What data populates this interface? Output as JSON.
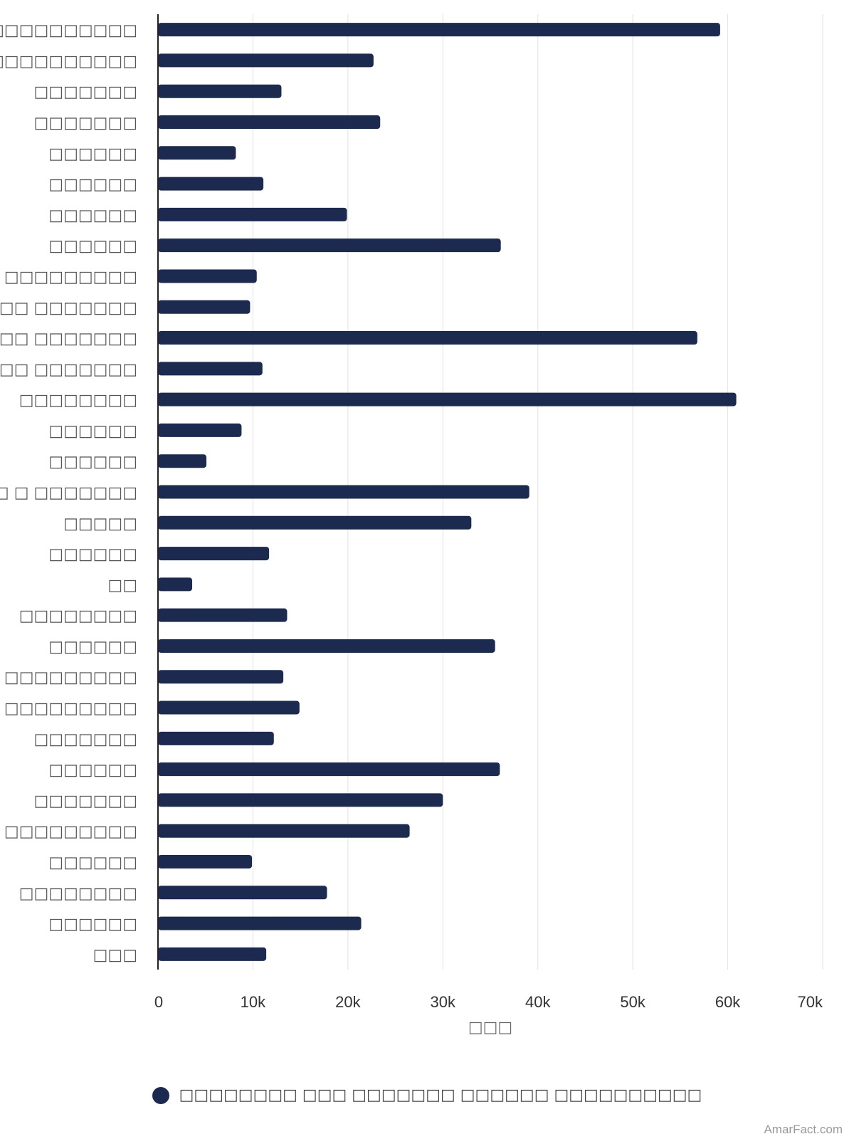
{
  "colors": {
    "bar": "#1b2a4e",
    "grid": "#e2e2e2",
    "axis": "#222222"
  },
  "chart_data": {
    "type": "bar",
    "orientation": "horizontal",
    "categories": [
      "□ □□□□□□□□□□",
      "□ □□□□□□□□□□",
      "□□□□□□□",
      "□□□□□□□",
      "□□□□□□",
      "□□□□□□",
      "□□□□□□",
      "□□□□□□",
      "□ □ □□□□□□□□□",
      "□□□□□ □□□□□□□",
      "□□□□□ □□□□□□□",
      "□□□□□ □□□□□□□",
      "□□□□□□□□",
      "□□□□□□",
      "□□□□□□",
      "□□□□ □ □□□□□□□",
      "□□□□□",
      "□□□□□□",
      "□□",
      "□□□□□□□□",
      "□□□□□□",
      "□□□□□□□□□",
      "□ □ □□□□□□□□□",
      "□□□□□□□",
      "□□□□□□",
      "□□□□□□□",
      "□□□□□□□□□",
      "□□□□□□",
      "□□□□□□□□",
      "□□□□□□",
      "□□□"
    ],
    "series": [
      {
        "name": "□□□□□□□□ □□□ □□□□□□□ □□□□□□ □□□□□□□□□□",
        "values": [
          59200,
          22700,
          13000,
          23400,
          8200,
          11100,
          19900,
          36100,
          10400,
          9700,
          56800,
          11000,
          60900,
          8800,
          5100,
          39100,
          33000,
          11700,
          3600,
          13600,
          35500,
          13200,
          14900,
          12200,
          36000,
          30000,
          26500,
          9900,
          17800,
          21400,
          11400
        ]
      }
    ],
    "xlabel": "□□□",
    "xlim": [
      0,
      70000
    ],
    "xticks": [
      "0",
      "10k",
      "20k",
      "30k",
      "40k",
      "50k",
      "60k",
      "70k"
    ],
    "grid": true,
    "legend_position": "bottom"
  },
  "credit": "AmarFact.com"
}
